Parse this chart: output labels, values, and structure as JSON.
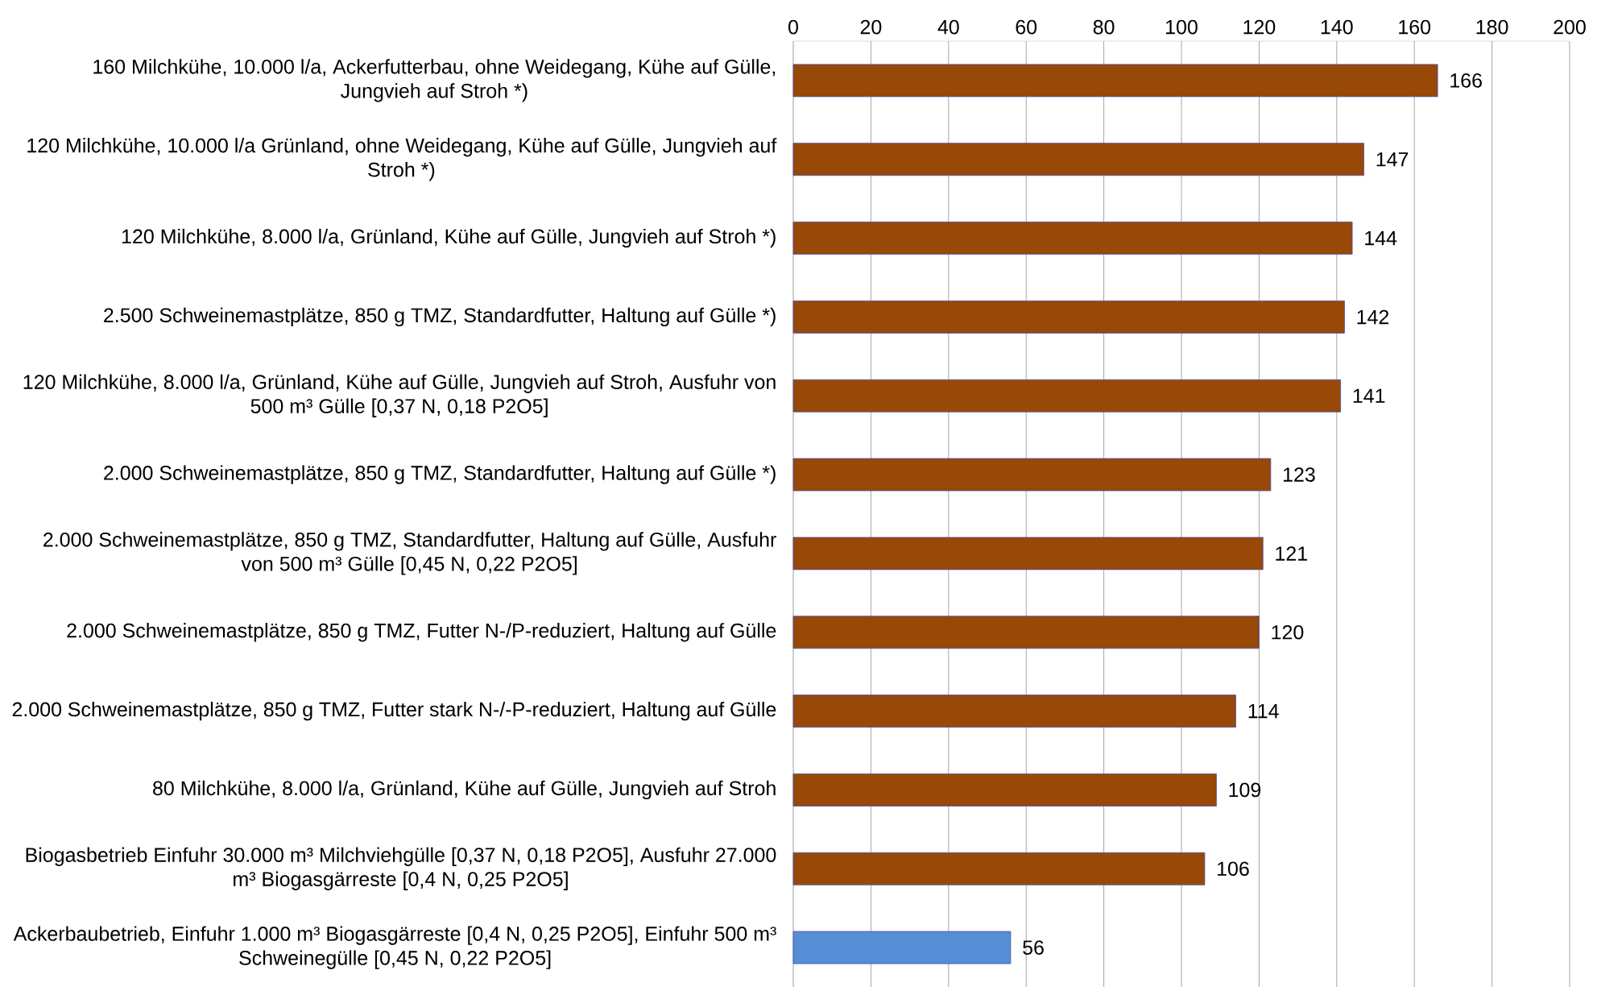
{
  "chart_data": {
    "type": "bar",
    "orientation": "horizontal",
    "categories": [
      "160 Milchkühe, 10.000 l/a, Ackerfutterbau, ohne Weidegang, Kühe auf Gülle, Jungvieh auf Stroh *)",
      "120 Milchkühe, 10.000 l/a Grünland, ohne Weidegang, Kühe auf Gülle, Jungvieh auf Stroh *)",
      "120 Milchkühe, 8.000 l/a, Grünland, Kühe auf Gülle, Jungvieh auf Stroh *)",
      "2.500 Schweinemastplätze, 850 g TMZ, Standardfutter, Haltung auf Gülle *)",
      "120 Milchkühe, 8.000 l/a, Grünland, Kühe auf Gülle, Jungvieh auf Stroh, Ausfuhr von 500 m³ Gülle [0,37 N, 0,18 P2O5]",
      "2.000 Schweinemastplätze, 850 g TMZ, Standardfutter, Haltung auf Gülle *)",
      "2.000 Schweinemastplätze, 850 g TMZ, Standardfutter, Haltung auf Gülle, Ausfuhr von 500 m³ Gülle [0,45 N, 0,22 P2O5]",
      "2.000 Schweinemastplätze, 850 g TMZ, Futter N-/P-reduziert, Haltung auf Gülle",
      "2.000 Schweinemastplätze, 850 g TMZ, Futter stark N-/-P-reduziert, Haltung auf Gülle",
      "80 Milchkühe, 8.000 l/a, Grünland, Kühe auf Gülle, Jungvieh auf Stroh",
      "Biogasbetrieb Einfuhr 30.000 m³ Milchviehgülle [0,37 N, 0,18 P2O5], Ausfuhr 27.000 m³ Biogasgärreste [0,4 N, 0,25 P2O5]",
      "Ackerbaubetrieb, Einfuhr 1.000 m³ Biogasgärreste [0,4 N, 0,25 P2O5], Einfuhr 500 m³ Schweinegülle [0,45 N, 0,22 P2O5]"
    ],
    "values": [
      166,
      147,
      144,
      142,
      141,
      123,
      121,
      120,
      114,
      109,
      106,
      56
    ],
    "colors": [
      "#984807",
      "#984807",
      "#984807",
      "#984807",
      "#984807",
      "#984807",
      "#984807",
      "#984807",
      "#984807",
      "#984807",
      "#984807",
      "#558ed5"
    ],
    "xlim": [
      0,
      200
    ],
    "xticks": [
      0,
      20,
      40,
      60,
      80,
      100,
      120,
      140,
      160,
      180,
      200
    ],
    "grid": "x",
    "data_labels": true
  }
}
